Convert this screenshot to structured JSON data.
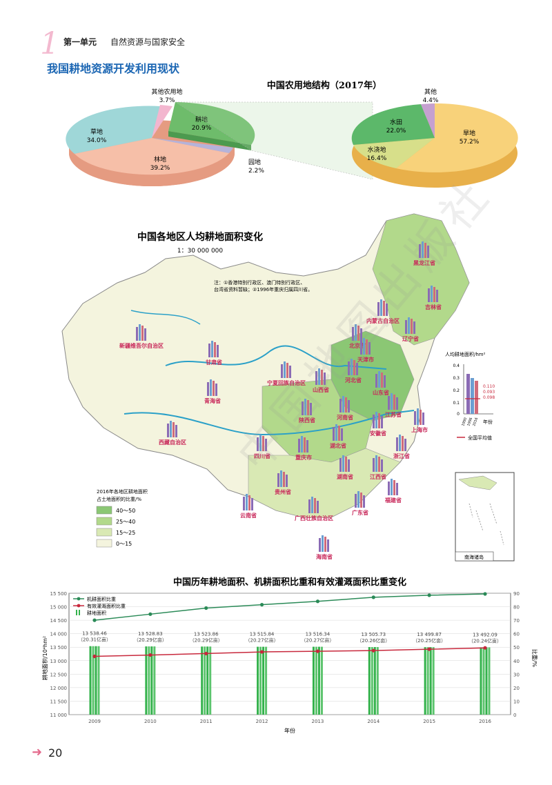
{
  "header": {
    "unit_number": "1",
    "unit_title": "第一单元",
    "unit_subtitle": "自然资源与国家安全"
  },
  "section_title": "我国耕地资源开发利用现状",
  "pie_chart": {
    "title": "中国农用地结构（2017年）",
    "left_pie": [
      {
        "label": "耕地",
        "value": "20.9%",
        "color": "#6ebc6b"
      },
      {
        "label": "园地",
        "value": "2.2%",
        "color": "#b5b3da"
      },
      {
        "label": "林地",
        "value": "39.2%",
        "color": "#f6bfa8"
      },
      {
        "label": "草地",
        "value": "34.0%",
        "color": "#9fd7d8"
      },
      {
        "label": "其他农用地",
        "value": "3.7%",
        "color": "#f3b6cf"
      }
    ],
    "right_pie": [
      {
        "label": "旱地",
        "value": "57.2%",
        "color": "#f8d27a"
      },
      {
        "label": "水浇地",
        "value": "16.4%",
        "color": "#d7df8a"
      },
      {
        "label": "水田",
        "value": "22.0%",
        "color": "#5cb86a"
      },
      {
        "label": "其他",
        "value": "4.4%",
        "color": "#c5a0d0"
      }
    ]
  },
  "map": {
    "title": "中国各地区人均耕地面积变化",
    "scale": "1：30 000 000",
    "note_line1": "注：①香港特别行政区、澳门特别行政区、",
    "note_line2": "台湾省资料暂缺；②1996年重庆归属四川省。",
    "provinces": [
      "黑龙江省",
      "吉林省",
      "辽宁省",
      "内蒙古自治区",
      "北京市",
      "天津市",
      "河北省",
      "山西省",
      "山东省",
      "宁夏回族自治区",
      "甘肃省",
      "新疆维吾尔自治区",
      "青海省",
      "西藏自治区",
      "陕西省",
      "河南省",
      "江苏省",
      "上海市",
      "安徽省",
      "湖北省",
      "四川省",
      "重庆市",
      "浙江省",
      "湖南省",
      "江西省",
      "福建省",
      "贵州省",
      "云南省",
      "广西壮族自治区",
      "广东省",
      "海南省"
    ],
    "legend_title1": "2016年各地区耕地面积",
    "legend_title2": "占土地面积的比重/%",
    "legend": [
      {
        "label": "40～50",
        "color": "#8bc774"
      },
      {
        "label": "25～40",
        "color": "#b2d98b"
      },
      {
        "label": "15～25",
        "color": "#d9e9b4"
      },
      {
        "label": "0～15",
        "color": "#f4f4de"
      }
    ],
    "inset_ylabel": "人均耕地面积/hm²",
    "inset_yticks": [
      "0.4",
      "0.3",
      "0.2",
      "0.1",
      "0"
    ],
    "inset_values": [
      "0.110",
      "0.093",
      "0.098"
    ],
    "inset_years": [
      "1990",
      "1996",
      "2016"
    ],
    "inset_xlabel": "年份",
    "inset_avg": "全国平均值",
    "south_sea": "南海诸岛"
  },
  "chart_data": {
    "type": "bar",
    "title": "中国历年耕地面积、机耕面积比重和有效灌溉面积比重变化",
    "categories": [
      "2009",
      "2010",
      "2011",
      "2012",
      "2013",
      "2014",
      "2015",
      "2016"
    ],
    "xlabel": "年份",
    "ylabel_left": "耕地面积/10⁴hm²",
    "ylabel_right": "比重/%",
    "ylim_left": [
      11000,
      15500
    ],
    "ylim_right": [
      0,
      90
    ],
    "yticks_left": [
      "15 500",
      "15 000",
      "14 500",
      "14 000",
      "13 500",
      "13 000",
      "12 500",
      "12 000",
      "11 500",
      "11 000"
    ],
    "yticks_right": [
      "90",
      "80",
      "70",
      "60",
      "50",
      "40",
      "30",
      "20",
      "10",
      "0"
    ],
    "series": [
      {
        "name": "机耕面积比重",
        "axis": "right",
        "color": "#2a8a57",
        "values": [
          70,
          74.5,
          79,
          81.5,
          84,
          87,
          88.5,
          89.5
        ]
      },
      {
        "name": "有效灌溉面积比重",
        "axis": "right",
        "color": "#c8283c",
        "values": [
          43.2,
          44.2,
          45.3,
          46.5,
          47,
          47.5,
          48.5,
          49.5
        ]
      },
      {
        "name": "耕地面积",
        "axis": "left",
        "color": "#33b24b",
        "values": [
          13538.46,
          13528.83,
          13523.86,
          13515.84,
          13516.34,
          13505.73,
          13499.87,
          13492.09
        ]
      }
    ],
    "bar_labels": [
      [
        "13 538.46",
        "（20.31亿亩）"
      ],
      [
        "13 528.83",
        "（20.29亿亩）"
      ],
      [
        "13 523.86",
        "（20.29亿亩）"
      ],
      [
        "13 515.84",
        "（20.27亿亩）"
      ],
      [
        "13 516.34",
        "（20.27亿亩）"
      ],
      [
        "13 505.73",
        "（20.26亿亩）"
      ],
      [
        "13 499.87",
        "（20.25亿亩）"
      ],
      [
        "13 492.09",
        "（20.24亿亩）"
      ]
    ],
    "legend_position": "top-left"
  },
  "footer": {
    "page_number": "20"
  },
  "watermark": "中国地图出版社"
}
